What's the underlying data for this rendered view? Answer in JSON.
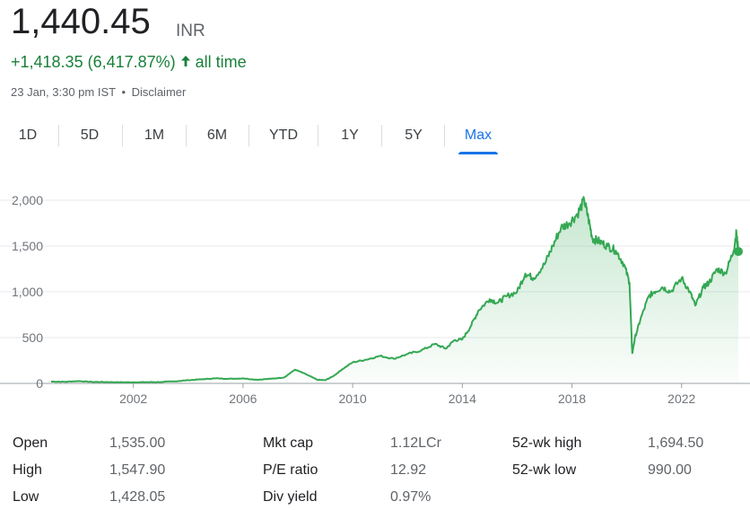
{
  "quote": {
    "price": "1,440.45",
    "currency": "INR",
    "change": "+1,418.35 (6,417.87%)",
    "period": "all time",
    "timestamp": "23 Jan, 3:30 pm IST",
    "separator": "•",
    "disclaimer": "Disclaimer",
    "accent_color": "#188038"
  },
  "tabs": [
    {
      "label": "1D"
    },
    {
      "label": "5D"
    },
    {
      "label": "1M"
    },
    {
      "label": "6M"
    },
    {
      "label": "YTD"
    },
    {
      "label": "1Y"
    },
    {
      "label": "5Y"
    },
    {
      "label": "Max",
      "selected": true
    }
  ],
  "chart_data": {
    "type": "area",
    "x_range": [
      1999.0,
      2024.07
    ],
    "ylim": [
      0,
      2000
    ],
    "y_ticks": [
      "0",
      "500",
      "1,000",
      "1,500",
      "2,000"
    ],
    "y_tick_values": [
      0,
      500,
      1000,
      1500,
      2000
    ],
    "x_ticks": [
      "2002",
      "2006",
      "2010",
      "2014",
      "2018",
      "2022"
    ],
    "x_tick_values": [
      2002,
      2006,
      2010,
      2014,
      2018,
      2022
    ],
    "grid": true,
    "line_color": "#34a853",
    "series": [
      {
        "x": [
          1999.0,
          1999.5,
          2000.0,
          2000.5,
          2001.0,
          2001.5,
          2002.0,
          2002.5,
          2003.0,
          2003.5,
          2004.0,
          2004.5,
          2005.0,
          2005.5,
          2006.0,
          2006.5,
          2007.0,
          2007.5,
          2007.9,
          2008.3,
          2008.7,
          2009.0,
          2009.3,
          2009.6,
          2010.0,
          2010.5,
          2011.0,
          2011.5,
          2012.0,
          2012.5,
          2013.0,
          2013.4,
          2013.7,
          2014.0,
          2014.3,
          2014.6,
          2015.0,
          2015.3,
          2015.6,
          2016.0,
          2016.3,
          2016.6,
          2017.0,
          2017.3,
          2017.6,
          2017.9,
          2018.2,
          2018.45,
          2018.6,
          2018.75,
          2019.0,
          2019.3,
          2019.6,
          2019.9,
          2020.1,
          2020.2,
          2020.3,
          2020.5,
          2020.8,
          2021.0,
          2021.3,
          2021.6,
          2022.0,
          2022.3,
          2022.5,
          2022.8,
          2023.0,
          2023.3,
          2023.6,
          2023.9,
          2024.0,
          2024.07
        ],
        "values": [
          20,
          18,
          25,
          16,
          15,
          12,
          12,
          14,
          15,
          22,
          35,
          45,
          55,
          50,
          55,
          40,
          50,
          65,
          150,
          100,
          40,
          35,
          80,
          150,
          230,
          260,
          300,
          270,
          320,
          360,
          430,
          380,
          470,
          480,
          620,
          800,
          920,
          880,
          950,
          1000,
          1200,
          1150,
          1300,
          1500,
          1700,
          1750,
          1850,
          2000,
          1800,
          1580,
          1550,
          1500,
          1450,
          1300,
          1100,
          330,
          500,
          700,
          950,
          1000,
          1050,
          1000,
          1150,
          1000,
          850,
          1050,
          1100,
          1250,
          1200,
          1450,
          1650,
          1440.45
        ],
        "last_value": 1440.45
      }
    ]
  },
  "stats": [
    {
      "label": "Open",
      "value": "1,535.00"
    },
    {
      "label": "High",
      "value": "1,547.90"
    },
    {
      "label": "Low",
      "value": "1,428.05"
    },
    {
      "label": "Mkt cap",
      "value": "1.12LCr"
    },
    {
      "label": "P/E ratio",
      "value": "12.92"
    },
    {
      "label": "Div yield",
      "value": "0.97%"
    },
    {
      "label": "52-wk high",
      "value": "1,694.50"
    },
    {
      "label": "52-wk low",
      "value": "990.00"
    }
  ]
}
